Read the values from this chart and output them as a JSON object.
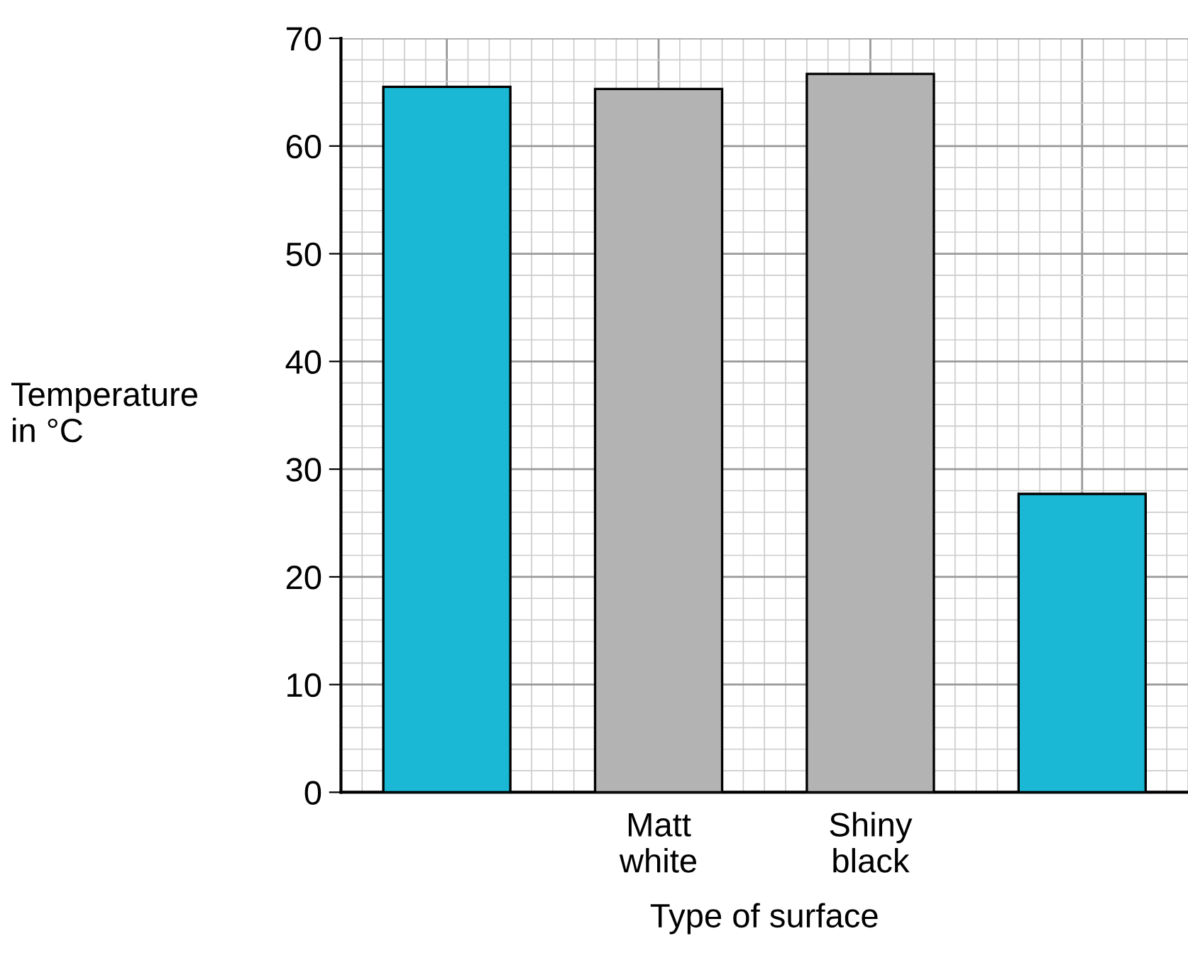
{
  "chart_data": {
    "type": "bar",
    "xlabel": "Type of surface",
    "ylabel": "Temperature\nin °C",
    "categories": [
      null,
      "Matt\nwhite",
      "Shiny\nblack",
      null
    ],
    "values": [
      65.5,
      65.3,
      66.7,
      27.7
    ],
    "colors": [
      "#1ab8d4",
      "#b3b3b3",
      "#b3b3b3",
      "#1ab8d4"
    ],
    "ylim": [
      0,
      70
    ],
    "yticks": [
      0,
      10,
      20,
      30,
      40,
      50,
      60,
      70
    ],
    "grid": true
  }
}
